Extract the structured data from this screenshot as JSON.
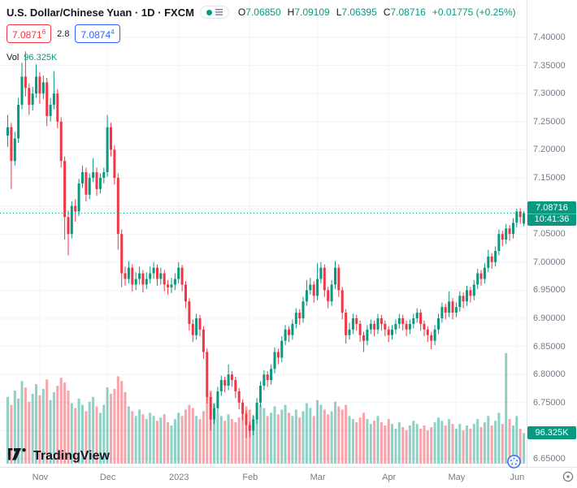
{
  "header": {
    "symbol_title": "U.S. Dollar/Chinese Yuan · 1D · FXCM",
    "ohlc": {
      "o_label": "O",
      "o": "7.06850",
      "h_label": "H",
      "h": "7.09109",
      "l_label": "L",
      "l": "7.06395",
      "c_label": "C",
      "c": "7.08716",
      "change": "+0.01775 (+0.25%)"
    },
    "bid": {
      "value": "7.0871",
      "sup": "6"
    },
    "spread": "2.8",
    "ask": {
      "value": "7.0874",
      "sup": "4"
    },
    "vol_label": "Vol",
    "vol_value": "96.325K"
  },
  "axis": {
    "price_ticks": [
      "7.40000",
      "7.35000",
      "7.30000",
      "7.25000",
      "7.20000",
      "7.15000",
      "7.10000",
      "7.05000",
      "7.00000",
      "6.95000",
      "6.90000",
      "6.85000",
      "6.80000",
      "6.75000",
      "6.70000",
      "6.65000"
    ],
    "time_ticks": [
      {
        "label": "Nov",
        "i": 9
      },
      {
        "label": "Dec",
        "i": 28
      },
      {
        "label": "2023",
        "i": 48
      },
      {
        "label": "Feb",
        "i": 68
      },
      {
        "label": "Mar",
        "i": 87
      },
      {
        "label": "Apr",
        "i": 107
      },
      {
        "label": "May",
        "i": 126
      },
      {
        "label": "Jun",
        "i": 143
      }
    ],
    "price_badge": {
      "price": "7.08716",
      "countdown": "10:41:36"
    },
    "volume_badge": "96.325K"
  },
  "watermark": {
    "brand": "TradingView"
  },
  "colors": {
    "up": "#089981",
    "down": "#f23645",
    "vol_up": "rgba(8,153,129,0.45)",
    "vol_down": "rgba(242,54,69,0.45)",
    "grid": "#f0f3fa",
    "axis_border": "#e0e3eb",
    "axis_text": "#787b86",
    "text": "#131722",
    "bid": "#f23645",
    "ask": "#2962ff"
  },
  "chart_data": {
    "type": "candlestick",
    "title": "U.S. Dollar/Chinese Yuan",
    "timeframe": "1D",
    "exchange": "FXCM",
    "x_axis": "Daily candles, Nov 2022 - Jun 2023",
    "y_range_visible": [
      6.63,
      7.43
    ],
    "current_price": 7.08716,
    "current_volume_k": 96.325,
    "volumes_unit": "K",
    "ohlc_format": "[open, high, low, close]",
    "candles": [
      [
        7.225,
        7.262,
        7.205,
        7.24
      ],
      [
        7.24,
        7.248,
        7.13,
        7.18
      ],
      [
        7.18,
        7.232,
        7.172,
        7.22
      ],
      [
        7.22,
        7.292,
        7.212,
        7.28
      ],
      [
        7.28,
        7.355,
        7.272,
        7.33
      ],
      [
        7.33,
        7.375,
        7.295,
        7.31
      ],
      [
        7.31,
        7.318,
        7.262,
        7.28
      ],
      [
        7.28,
        7.312,
        7.27,
        7.3
      ],
      [
        7.3,
        7.352,
        7.292,
        7.33
      ],
      [
        7.33,
        7.338,
        7.282,
        7.3
      ],
      [
        7.3,
        7.332,
        7.29,
        7.32
      ],
      [
        7.32,
        7.328,
        7.242,
        7.26
      ],
      [
        7.26,
        7.292,
        7.25,
        7.28
      ],
      [
        7.28,
        7.34,
        7.272,
        7.3
      ],
      [
        7.3,
        7.308,
        7.238,
        7.25
      ],
      [
        7.25,
        7.258,
        7.168,
        7.18
      ],
      [
        7.18,
        7.188,
        7.04,
        7.08
      ],
      [
        7.08,
        7.092,
        7.012,
        7.05
      ],
      [
        7.05,
        7.108,
        7.042,
        7.1
      ],
      [
        7.1,
        7.112,
        7.072,
        7.09
      ],
      [
        7.09,
        7.148,
        7.082,
        7.14
      ],
      [
        7.14,
        7.172,
        7.132,
        7.16
      ],
      [
        7.16,
        7.168,
        7.108,
        7.12
      ],
      [
        7.12,
        7.158,
        7.112,
        7.15
      ],
      [
        7.15,
        7.185,
        7.142,
        7.16
      ],
      [
        7.16,
        7.168,
        7.118,
        7.13
      ],
      [
        7.13,
        7.158,
        7.122,
        7.15
      ],
      [
        7.15,
        7.168,
        7.14,
        7.16
      ],
      [
        7.16,
        7.262,
        7.152,
        7.24
      ],
      [
        7.24,
        7.248,
        7.188,
        7.2
      ],
      [
        7.2,
        7.208,
        7.138,
        7.15
      ],
      [
        7.15,
        7.158,
        7.022,
        7.05
      ],
      [
        7.05,
        7.058,
        6.955,
        6.98
      ],
      [
        6.98,
        6.992,
        6.958,
        6.97
      ],
      [
        6.97,
        7.002,
        6.962,
        6.99
      ],
      [
        6.99,
        6.996,
        6.948,
        6.96
      ],
      [
        6.96,
        6.982,
        6.95,
        6.97
      ],
      [
        6.97,
        6.992,
        6.96,
        6.98
      ],
      [
        6.98,
        6.986,
        6.946,
        6.96
      ],
      [
        6.96,
        6.982,
        6.952,
        6.97
      ],
      [
        6.97,
        6.992,
        6.962,
        6.98
      ],
      [
        6.98,
        7.0,
        6.97,
        6.99
      ],
      [
        6.99,
        6.996,
        6.958,
        6.97
      ],
      [
        6.97,
        6.99,
        6.96,
        6.98
      ],
      [
        6.98,
        6.986,
        6.948,
        6.96
      ],
      [
        6.96,
        6.968,
        6.942,
        6.955
      ],
      [
        6.955,
        6.972,
        6.945,
        6.96
      ],
      [
        6.96,
        6.98,
        6.95,
        6.97
      ],
      [
        6.97,
        7.0,
        6.962,
        6.99
      ],
      [
        6.99,
        6.995,
        6.948,
        6.96
      ],
      [
        6.96,
        6.966,
        6.918,
        6.93
      ],
      [
        6.93,
        6.936,
        6.878,
        6.89
      ],
      [
        6.89,
        6.898,
        6.858,
        6.87
      ],
      [
        6.87,
        6.908,
        6.862,
        6.9
      ],
      [
        6.9,
        6.906,
        6.868,
        6.88
      ],
      [
        6.88,
        6.886,
        6.828,
        6.84
      ],
      [
        6.84,
        6.846,
        6.748,
        6.76
      ],
      [
        6.76,
        6.768,
        6.7,
        6.72
      ],
      [
        6.72,
        6.748,
        6.712,
        6.74
      ],
      [
        6.74,
        6.778,
        6.732,
        6.77
      ],
      [
        6.77,
        6.798,
        6.762,
        6.79
      ],
      [
        6.79,
        6.796,
        6.768,
        6.78
      ],
      [
        6.78,
        6.818,
        6.772,
        6.8
      ],
      [
        6.8,
        6.806,
        6.778,
        6.79
      ],
      [
        6.79,
        6.796,
        6.758,
        6.77
      ],
      [
        6.77,
        6.776,
        6.738,
        6.75
      ],
      [
        6.75,
        6.756,
        6.718,
        6.73
      ],
      [
        6.73,
        6.736,
        6.687,
        6.71
      ],
      [
        6.71,
        6.716,
        6.688,
        6.7
      ],
      [
        6.7,
        6.728,
        6.692,
        6.72
      ],
      [
        6.72,
        6.758,
        6.712,
        6.75
      ],
      [
        6.75,
        6.788,
        6.742,
        6.78
      ],
      [
        6.78,
        6.808,
        6.772,
        6.8
      ],
      [
        6.8,
        6.806,
        6.778,
        6.79
      ],
      [
        6.79,
        6.818,
        6.782,
        6.81
      ],
      [
        6.81,
        6.848,
        6.802,
        6.84
      ],
      [
        6.84,
        6.846,
        6.818,
        6.83
      ],
      [
        6.83,
        6.868,
        6.822,
        6.86
      ],
      [
        6.86,
        6.888,
        6.852,
        6.88
      ],
      [
        6.88,
        6.886,
        6.858,
        6.87
      ],
      [
        6.87,
        6.898,
        6.862,
        6.89
      ],
      [
        6.89,
        6.918,
        6.882,
        6.91
      ],
      [
        6.91,
        6.916,
        6.888,
        6.9
      ],
      [
        6.9,
        6.938,
        6.892,
        6.93
      ],
      [
        6.93,
        6.968,
        6.922,
        6.95
      ],
      [
        6.95,
        6.972,
        6.942,
        6.96
      ],
      [
        6.96,
        6.966,
        6.928,
        6.94
      ],
      [
        6.94,
        6.998,
        6.932,
        6.97
      ],
      [
        6.97,
        7.0,
        6.962,
        6.99
      ],
      [
        6.99,
        6.996,
        6.938,
        6.95
      ],
      [
        6.95,
        6.956,
        6.918,
        6.93
      ],
      [
        6.93,
        6.968,
        6.922,
        6.96
      ],
      [
        6.96,
        7.002,
        6.952,
        6.99
      ],
      [
        6.99,
        6.996,
        6.938,
        6.95
      ],
      [
        6.95,
        6.956,
        6.898,
        6.91
      ],
      [
        6.91,
        6.916,
        6.855,
        6.87
      ],
      [
        6.87,
        6.892,
        6.862,
        6.88
      ],
      [
        6.88,
        6.908,
        6.872,
        6.9
      ],
      [
        6.9,
        6.906,
        6.878,
        6.89
      ],
      [
        6.89,
        6.896,
        6.858,
        6.87
      ],
      [
        6.87,
        6.876,
        6.84,
        6.86
      ],
      [
        6.86,
        6.888,
        6.852,
        6.88
      ],
      [
        6.88,
        6.898,
        6.872,
        6.89
      ],
      [
        6.89,
        6.896,
        6.868,
        6.88
      ],
      [
        6.88,
        6.908,
        6.872,
        6.9
      ],
      [
        6.9,
        6.906,
        6.878,
        6.89
      ],
      [
        6.89,
        6.896,
        6.868,
        6.88
      ],
      [
        6.88,
        6.886,
        6.858,
        6.87
      ],
      [
        6.87,
        6.888,
        6.862,
        6.88
      ],
      [
        6.88,
        6.898,
        6.872,
        6.89
      ],
      [
        6.89,
        6.908,
        6.882,
        6.9
      ],
      [
        6.9,
        6.906,
        6.878,
        6.89
      ],
      [
        6.89,
        6.896,
        6.868,
        6.88
      ],
      [
        6.88,
        6.898,
        6.872,
        6.89
      ],
      [
        6.89,
        6.908,
        6.882,
        6.9
      ],
      [
        6.9,
        6.918,
        6.892,
        6.91
      ],
      [
        6.91,
        6.916,
        6.878,
        6.89
      ],
      [
        6.89,
        6.896,
        6.868,
        6.88
      ],
      [
        6.88,
        6.886,
        6.858,
        6.87
      ],
      [
        6.87,
        6.876,
        6.845,
        6.86
      ],
      [
        6.86,
        6.888,
        6.852,
        6.88
      ],
      [
        6.88,
        6.908,
        6.872,
        6.9
      ],
      [
        6.9,
        6.928,
        6.892,
        6.92
      ],
      [
        6.92,
        6.926,
        6.898,
        6.91
      ],
      [
        6.91,
        6.948,
        6.902,
        6.93
      ],
      [
        6.93,
        6.936,
        6.898,
        6.91
      ],
      [
        6.91,
        6.928,
        6.902,
        6.92
      ],
      [
        6.92,
        6.948,
        6.912,
        6.94
      ],
      [
        6.94,
        6.946,
        6.918,
        6.93
      ],
      [
        6.93,
        6.958,
        6.922,
        6.95
      ],
      [
        6.95,
        6.956,
        6.928,
        6.94
      ],
      [
        6.94,
        6.968,
        6.932,
        6.96
      ],
      [
        6.96,
        6.988,
        6.952,
        6.98
      ],
      [
        6.98,
        6.986,
        6.958,
        6.97
      ],
      [
        6.97,
        6.998,
        6.962,
        6.99
      ],
      [
        6.99,
        7.022,
        6.982,
        7.01
      ],
      [
        7.01,
        7.016,
        6.988,
        7.0
      ],
      [
        7.0,
        7.028,
        6.992,
        7.02
      ],
      [
        7.02,
        7.058,
        7.012,
        7.05
      ],
      [
        7.05,
        7.056,
        7.028,
        7.04
      ],
      [
        7.04,
        7.068,
        7.032,
        7.06
      ],
      [
        7.06,
        7.066,
        7.038,
        7.05
      ],
      [
        7.05,
        7.078,
        7.042,
        7.07
      ],
      [
        7.07,
        7.095,
        7.062,
        7.09
      ],
      [
        7.09,
        7.096,
        7.068,
        7.08
      ],
      [
        7.0685,
        7.09109,
        7.06395,
        7.08716
      ]
    ],
    "volumes": [
      210,
      185,
      230,
      205,
      260,
      240,
      195,
      220,
      250,
      215,
      235,
      265,
      200,
      225,
      245,
      270,
      255,
      230,
      190,
      175,
      205,
      185,
      165,
      195,
      210,
      180,
      160,
      185,
      240,
      220,
      235,
      275,
      260,
      225,
      180,
      165,
      150,
      170,
      155,
      140,
      160,
      150,
      135,
      145,
      155,
      130,
      120,
      140,
      160,
      150,
      170,
      185,
      175,
      150,
      140,
      165,
      210,
      230,
      190,
      160,
      150,
      135,
      155,
      140,
      130,
      145,
      160,
      180,
      170,
      150,
      165,
      185,
      175,
      150,
      160,
      180,
      155,
      170,
      185,
      160,
      150,
      170,
      145,
      165,
      190,
      175,
      150,
      200,
      185,
      170,
      155,
      165,
      195,
      180,
      170,
      185,
      150,
      140,
      130,
      145,
      160,
      140,
      125,
      135,
      150,
      130,
      120,
      140,
      125,
      110,
      130,
      115,
      105,
      120,
      135,
      125,
      110,
      120,
      105,
      115,
      130,
      145,
      135,
      120,
      140,
      125,
      110,
      125,
      105,
      120,
      110,
      125,
      140,
      115,
      130,
      150,
      120,
      135,
      160,
      125,
      348,
      140,
      120,
      150,
      110,
      96.325
    ]
  }
}
